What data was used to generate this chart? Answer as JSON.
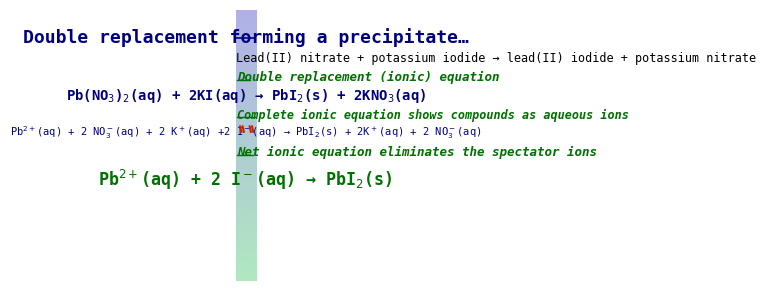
{
  "title": "Double replacement forming a precipitate…",
  "background_gradient_top": "#b0b0e8",
  "background_gradient_bottom": "#b0e8c0",
  "title_color": "#000080",
  "title_fontsize": 13,
  "word_eq": "Lead(II) nitrate + potassium iodide → lead(II) iodide + potassium nitrate",
  "word_eq_fontsize": 8.5,
  "word_eq_color": "#000000",
  "section1_label": "Double replacement (ionic) equation",
  "section1_label_color": "#007000",
  "section1_label_fontsize": 9,
  "section1_eq": "Pb(NO$_3$)$_2$(aq) + 2KI(aq) → PbI$_2$(s) + 2KNO$_3$(aq)",
  "section1_eq_color": "#000080",
  "section1_eq_fontsize": 10,
  "section2_label": "Complete ionic equation shows compounds as aqueous ions",
  "section2_label_color": "#007000",
  "section2_label_fontsize": 8.5,
  "section2_eq": "Pb$^{2+}$(aq) + 2 NO$_3^-$(aq) + 2 K$^+$(aq) +2 I$^-$(aq) → PbI$_2$(s) + 2K$^+$(aq) + 2 NO$_3^-$(aq)",
  "section2_eq_color": "#000080",
  "section2_eq_fontsize": 7.5,
  "section3_label": "Net ionic equation eliminates the spectator ions",
  "section3_label_color": "#007000",
  "section3_label_fontsize": 9,
  "section3_eq": "Pb$^{2+}$(aq) + 2 I$^-$(aq) → PbI$_2$(s)",
  "section3_eq_color": "#007000",
  "section3_eq_fontsize": 12,
  "strikethrough_color": "#cc2200",
  "fig_width": 3.64,
  "fig_height": 2.74
}
